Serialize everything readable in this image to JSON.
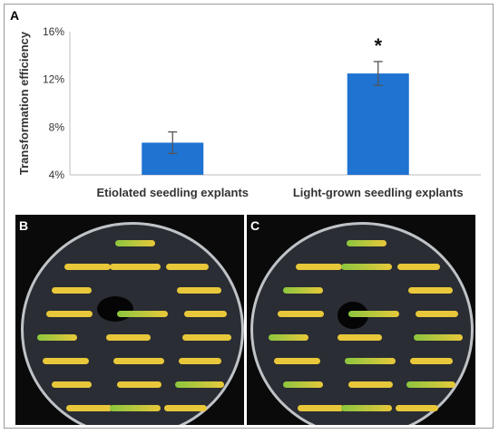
{
  "panels": {
    "a": "A",
    "b": "B",
    "c": "C"
  },
  "chart_data": {
    "type": "bar",
    "title": "",
    "xlabel": "",
    "ylabel": "Transformation efficiency",
    "categories": [
      "Etiolated seedling explants",
      "Light-grown seedling explants"
    ],
    "values": [
      6.7,
      12.5
    ],
    "error": [
      0.9,
      1.0
    ],
    "ylim": [
      4,
      16
    ],
    "yticks": [
      "4%",
      "8%",
      "12%",
      "16%"
    ],
    "ytick_values": [
      4,
      8,
      12,
      16
    ],
    "significance": [
      "",
      "*"
    ],
    "bar_color": "#1f73d1",
    "grid": false
  },
  "colors": {
    "plate_bg": "#1c1f24",
    "explant_yellow": "#e8c83a",
    "explant_green": "#8cc63f"
  }
}
